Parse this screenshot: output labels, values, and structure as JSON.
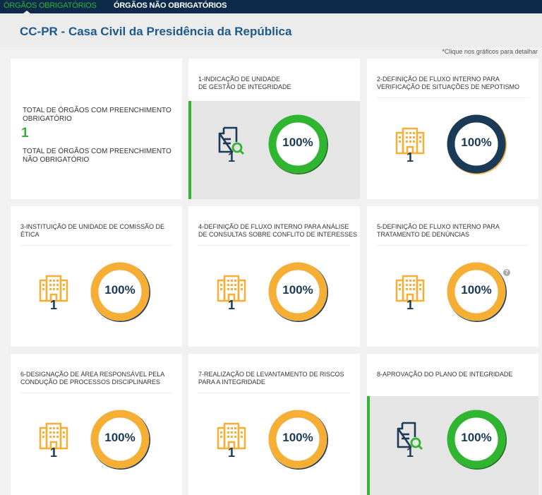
{
  "tabs": [
    {
      "label": "ÓRGÃOS OBRIGATÓRIOS",
      "active": true
    },
    {
      "label": "ÓRGÃOS NÃO OBRIGATÓRIOS",
      "active": false
    }
  ],
  "header": {
    "title": "CC-PR - Casa Civil da Presidência da República"
  },
  "hint": "*Clique nos gráficos para detalhar",
  "summary": {
    "mandatory_label": "TOTAL DE ÓRGÃOS COM PREENCHIMENTO OBRIGATÓRIO",
    "mandatory_count": "1",
    "optional_label": "TOTAL DE ÓRGÃOS COM PREENCHIMENTO NÃO OBRIGATÓRIO"
  },
  "colors": {
    "green": "#2fb52f",
    "orange": "#f6ae35",
    "navy": "#1b3a57",
    "nav_bg": "#0d2a4a",
    "title": "#1d5a8c"
  },
  "cards": [
    {
      "title": "1-INDICAÇÃO DE UNIDADE\nDE GESTÃO DE INTEGRIDADE",
      "count": "1",
      "percent": "100%",
      "value": 100,
      "icon": "document-search-icon",
      "ring": "#2fb52f",
      "edge": "#1e6e1e",
      "selected": true
    },
    {
      "title": "2-DEFINIÇÃO DE FLUXO INTERNO PARA VERIFICAÇÃO DE SITUAÇÕES DE NEPOTISMO",
      "count": "1",
      "percent": "100%",
      "value": 100,
      "icon": "building-icon",
      "ring": "#1b3a57",
      "edge": "#f6ae35",
      "selected": false
    },
    {
      "title": "3-INSTITUIÇÃO DE UNIDADE DE COMISSÃO DE ÉTICA",
      "count": "1",
      "percent": "100%",
      "value": 100,
      "icon": "building-icon",
      "ring": "#f6ae35",
      "edge": "#1b3a57",
      "selected": false
    },
    {
      "title": "4-DEFINIÇÃO DE FLUXO INTERNO PARA ANÁLISE DE CONSULTAS SOBRE CONFLITO DE INTERESSES",
      "count": "1",
      "percent": "100%",
      "value": 100,
      "icon": "building-icon",
      "ring": "#f6ae35",
      "edge": "#1b3a57",
      "selected": false
    },
    {
      "title": "5-DEFINIÇÃO DE FLUXO INTERNO PARA TRATAMENTO DE DENÚNCIAS",
      "count": "1",
      "percent": "100%",
      "value": 100,
      "icon": "building-icon",
      "ring": "#f6ae35",
      "edge": "#1b3a57",
      "selected": false,
      "help": "?"
    },
    {
      "title": "6-DESIGNAÇÃO DE ÁREA RESPONSÁVEL PELA CONDUÇÃO DE PROCESSOS DISCIPLINARES",
      "count": "1",
      "percent": "100%",
      "value": 100,
      "icon": "building-icon",
      "ring": "#f6ae35",
      "edge": "#1b3a57",
      "selected": false
    },
    {
      "title": "7-REALIZAÇÃO DE LEVANTAMENTO DE RISCOS PARA A INTEGRIDADE",
      "count": "1",
      "percent": "100%",
      "value": 100,
      "icon": "building-icon",
      "ring": "#f6ae35",
      "edge": "#1b3a57",
      "selected": false
    },
    {
      "title": "8-APROVAÇÃO DO PLANO DE INTEGRIDADE",
      "count": "1",
      "percent": "100%",
      "value": 100,
      "icon": "document-search-icon",
      "ring": "#2fb52f",
      "edge": "#1e6e1e",
      "selected": true
    }
  ]
}
